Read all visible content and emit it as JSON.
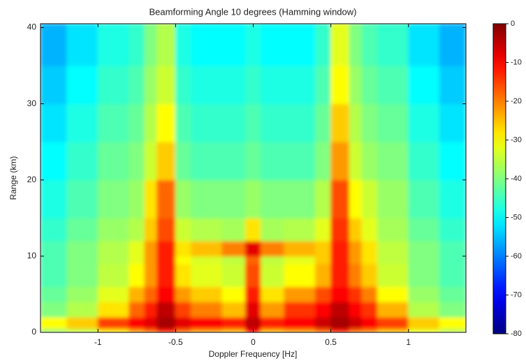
{
  "chart_data": {
    "type": "heatmap",
    "title": "Beamforming Angle 10 degrees (Hamming window)",
    "x_label": "Doppler Frequency [Hz]",
    "y_label": "Range (km)",
    "xlim": [
      -1.37,
      1.37
    ],
    "xticks": [
      -1,
      -0.5,
      0,
      0.5,
      1
    ],
    "ylim": [
      0,
      40.5
    ],
    "yticks": [
      0,
      10,
      20,
      30,
      40
    ],
    "colormap": "jet",
    "clim": [
      -80,
      0
    ],
    "cticks": [
      0,
      -10,
      -20,
      -30,
      -40,
      -50,
      -60,
      -70,
      -80
    ],
    "x_edges": [
      -1.37,
      -1.2,
      -1.0,
      -0.8,
      -0.7,
      -0.62,
      -0.5,
      -0.4,
      -0.2,
      -0.05,
      0.05,
      0.2,
      0.4,
      0.5,
      0.62,
      0.7,
      0.8,
      1.0,
      1.2,
      1.37
    ],
    "y_edges": [
      0,
      0.5,
      2,
      4,
      6,
      9,
      10,
      12,
      15,
      20,
      25,
      30,
      35,
      40.5
    ],
    "z": [
      [
        -38,
        -35,
        -28,
        -22,
        -18,
        -12,
        -18,
        -22,
        -24,
        -10,
        -24,
        -22,
        -18,
        -12,
        -18,
        -20,
        -25,
        -32,
        -36
      ],
      [
        -30,
        -26,
        -15,
        -10,
        -8,
        -3,
        -8,
        -10,
        -12,
        -5,
        -12,
        -10,
        -6,
        -3,
        -6,
        -10,
        -15,
        -26,
        -30
      ],
      [
        -40,
        -36,
        -28,
        -18,
        -12,
        -5,
        -15,
        -20,
        -25,
        -8,
        -22,
        -14,
        -10,
        -5,
        -10,
        -14,
        -24,
        -36,
        -40
      ],
      [
        -42,
        -38,
        -32,
        -24,
        -18,
        -10,
        -22,
        -26,
        -30,
        -12,
        -28,
        -22,
        -16,
        -10,
        -14,
        -20,
        -30,
        -38,
        -42
      ],
      [
        -44,
        -40,
        -35,
        -30,
        -22,
        -12,
        -28,
        -32,
        -34,
        -16,
        -34,
        -30,
        -24,
        -12,
        -20,
        -26,
        -34,
        -40,
        -44
      ],
      [
        -44,
        -40,
        -36,
        -32,
        -22,
        -12,
        -30,
        -33,
        -35,
        -18,
        -35,
        -32,
        -26,
        -12,
        -22,
        -28,
        -35,
        -40,
        -44
      ],
      [
        -44,
        -40,
        -36,
        -32,
        -22,
        -12,
        -28,
        -25,
        -20,
        -8,
        -20,
        -24,
        -26,
        -12,
        -22,
        -28,
        -35,
        -40,
        -44
      ],
      [
        -46,
        -42,
        -38,
        -36,
        -26,
        -16,
        -34,
        -36,
        -37,
        -28,
        -37,
        -36,
        -32,
        -14,
        -26,
        -32,
        -37,
        -42,
        -46
      ],
      [
        -48,
        -44,
        -40,
        -38,
        -28,
        -18,
        -38,
        -40,
        -40,
        -38,
        -40,
        -40,
        -36,
        -16,
        -30,
        -34,
        -38,
        -44,
        -48
      ],
      [
        -50,
        -46,
        -42,
        -40,
        -34,
        -26,
        -42,
        -44,
        -44,
        -42,
        -44,
        -44,
        -40,
        -22,
        -34,
        -38,
        -40,
        -46,
        -50
      ],
      [
        -52,
        -48,
        -44,
        -42,
        -36,
        -30,
        -44,
        -46,
        -46,
        -44,
        -46,
        -46,
        -42,
        -26,
        -36,
        -40,
        -42,
        -48,
        -52
      ],
      [
        -54,
        -50,
        -46,
        -44,
        -38,
        -34,
        -46,
        -48,
        -48,
        -46,
        -48,
        -48,
        -44,
        -30,
        -38,
        -42,
        -44,
        -50,
        -54
      ],
      [
        -56,
        -52,
        -48,
        -46,
        -40,
        -36,
        -48,
        -50,
        -50,
        -48,
        -50,
        -50,
        -46,
        -32,
        -40,
        -44,
        -46,
        -52,
        -56
      ]
    ]
  }
}
